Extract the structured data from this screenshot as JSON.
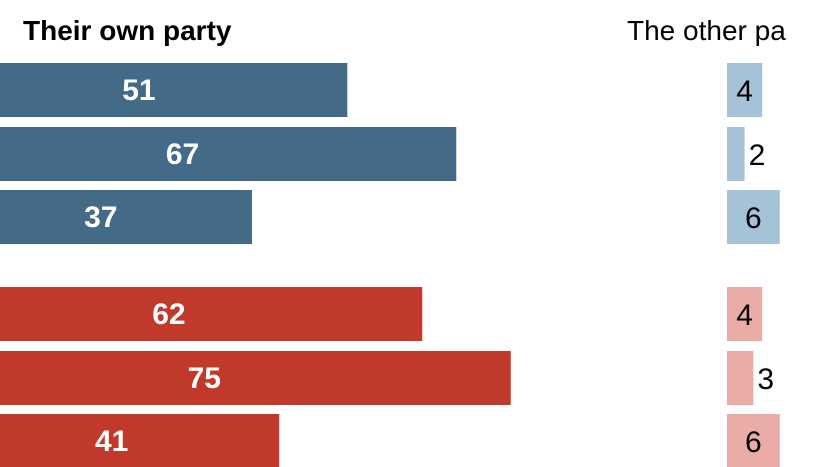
{
  "chart_data": {
    "type": "bar",
    "panels": [
      {
        "title": "Their own party",
        "series": [
          {
            "group": "dem",
            "color": "#436a86",
            "values": [
              51,
              67,
              37
            ]
          },
          {
            "group": "rep",
            "color": "#c0392b",
            "values": [
              62,
              75,
              41
            ]
          }
        ]
      },
      {
        "title": "The other pa",
        "series": [
          {
            "group": "dem",
            "color": "#a5c3d6",
            "values": [
              4,
              2,
              6
            ]
          },
          {
            "group": "rep",
            "color": "#eaaca6",
            "values": [
              4,
              3,
              6
            ]
          }
        ]
      }
    ]
  }
}
